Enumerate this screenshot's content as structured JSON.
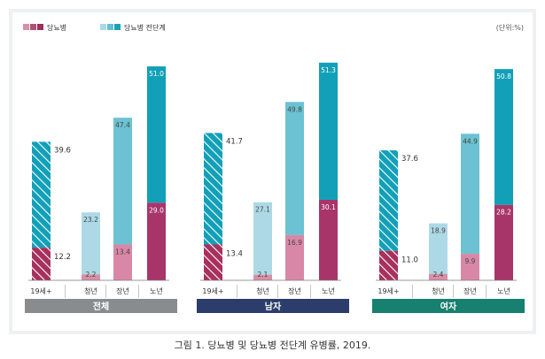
{
  "caption": "그림 1. 당뇨병 및 당뇨병 전단계 유병률, 2019.",
  "chart_data": {
    "type": "bar",
    "stacked": true,
    "unit_label": "(단위:%)",
    "legend": [
      {
        "label": "당뇨병",
        "swatches": [
          "#d88fa8",
          "#b84e75",
          "#9b2f5b"
        ]
      },
      {
        "label": "당뇨병 전단계",
        "swatches": [
          "#a8dae6",
          "#5fc1d1",
          "#1ba0b7"
        ]
      }
    ],
    "age_groups": [
      "19세+",
      "청년",
      "장년",
      "노년"
    ],
    "ylim": [
      0,
      85
    ],
    "groups": [
      {
        "label": "전체",
        "color": "#8a8b8d",
        "diabetes": [
          12.2,
          2.2,
          13.4,
          29.0
        ],
        "prediabetes": [
          39.6,
          23.2,
          47.4,
          51.0
        ],
        "diabetes_labels": [
          "12.2",
          "2.2",
          "13.4",
          "29.0"
        ],
        "prediabetes_labels": [
          "39.6",
          "23.2",
          "47.4",
          "51.0"
        ]
      },
      {
        "label": "남자",
        "color": "#2d3d6b",
        "diabetes": [
          13.4,
          2.1,
          16.9,
          30.1
        ],
        "prediabetes": [
          41.7,
          27.1,
          49.8,
          51.3
        ],
        "diabetes_labels": [
          "13.4",
          "2.1",
          "16.9",
          "30.1"
        ],
        "prediabetes_labels": [
          "41.7",
          "27.1",
          "49.8",
          "51.3"
        ]
      },
      {
        "label": "여자",
        "color": "#17806f",
        "diabetes": [
          11.0,
          2.4,
          9.9,
          28.2
        ],
        "prediabetes": [
          37.6,
          18.9,
          44.9,
          50.8
        ],
        "diabetes_labels": [
          "11.0",
          "2.4",
          "9.9",
          "28.2"
        ],
        "prediabetes_labels": [
          "37.6",
          "18.9",
          "44.9",
          "50.8"
        ]
      }
    ],
    "colors": {
      "diabetes_19": "#a8305c",
      "prediabetes_19": "#12a0b8",
      "diabetes": [
        "#d88fa8",
        "#d888a6",
        "#a8356a"
      ],
      "prediabetes": [
        "#add9e6",
        "#6cc2d2",
        "#12a0b8"
      ]
    }
  }
}
